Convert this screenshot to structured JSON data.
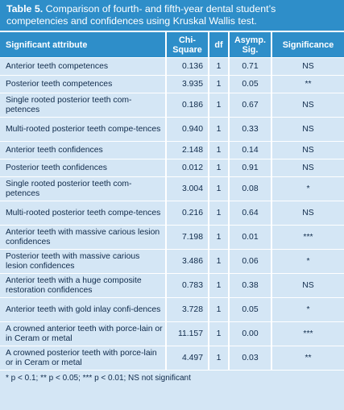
{
  "table": {
    "caption_label": "Table 5.",
    "caption_text": " Comparison of fourth- and fifth-year dental student’s competencies and confidences using Kruskal Wallis test.",
    "headers": {
      "attribute": "Significant attribute",
      "chi_square": "Chi-Square",
      "df": "df",
      "asymp_sig": "Asymp. Sig.",
      "significance": "Significance"
    },
    "rows": [
      {
        "attribute": "Anterior teeth competences",
        "chi": "0.136",
        "df": "1",
        "sig": "0.71",
        "significance": "NS"
      },
      {
        "attribute": "Posterior teeth competences",
        "chi": "3.935",
        "df": "1",
        "sig": "0.05",
        "significance": "**"
      },
      {
        "attribute": "Single rooted posterior teeth com-petences",
        "chi": "0.186",
        "df": "1",
        "sig": "0.67",
        "significance": "NS"
      },
      {
        "attribute": "Multi-rooted posterior teeth compe-tences",
        "chi": "0.940",
        "df": "1",
        "sig": "0.33",
        "significance": "NS"
      },
      {
        "attribute": "Anterior teeth confidences",
        "chi": "2.148",
        "df": "1",
        "sig": "0.14",
        "significance": "NS"
      },
      {
        "attribute": "Posterior teeth confidences",
        "chi": "0.012",
        "df": "1",
        "sig": "0.91",
        "significance": "NS"
      },
      {
        "attribute": "Single rooted posterior teeth com-petences",
        "chi": "3.004",
        "df": "1",
        "sig": "0.08",
        "significance": "*"
      },
      {
        "attribute": "Multi-rooted posterior teeth compe-tences",
        "chi": "0.216",
        "df": "1",
        "sig": "0.64",
        "significance": "NS"
      },
      {
        "attribute": "Anterior teeth with massive carious lesion confidences",
        "chi": "7.198",
        "df": "1",
        "sig": "0.01",
        "significance": "***"
      },
      {
        "attribute": "Posterior teeth with massive carious lesion confidences",
        "chi": "3.486",
        "df": "1",
        "sig": "0.06",
        "significance": "*"
      },
      {
        "attribute": "Anterior teeth with a huge composite restoration  confidences",
        "chi": "0.783",
        "df": "1",
        "sig": "0.38",
        "significance": "NS"
      },
      {
        "attribute": "Anterior teeth with gold inlay confi-dences",
        "chi": "3.728",
        "df": "1",
        "sig": "0.05",
        "significance": "*"
      },
      {
        "attribute": "A crowned anterior teeth with porce-lain or in Ceram or metal",
        "chi": "11.157",
        "df": "1",
        "sig": "0.00",
        "significance": "***"
      },
      {
        "attribute": "A crowned posterior teeth with porce-lain or in Ceram or metal",
        "chi": "4.497",
        "df": "1",
        "sig": "0.03",
        "significance": "**"
      }
    ],
    "footnote": "* p < 0.1; ** p < 0.05; *** p < 0.01; NS not significant"
  }
}
